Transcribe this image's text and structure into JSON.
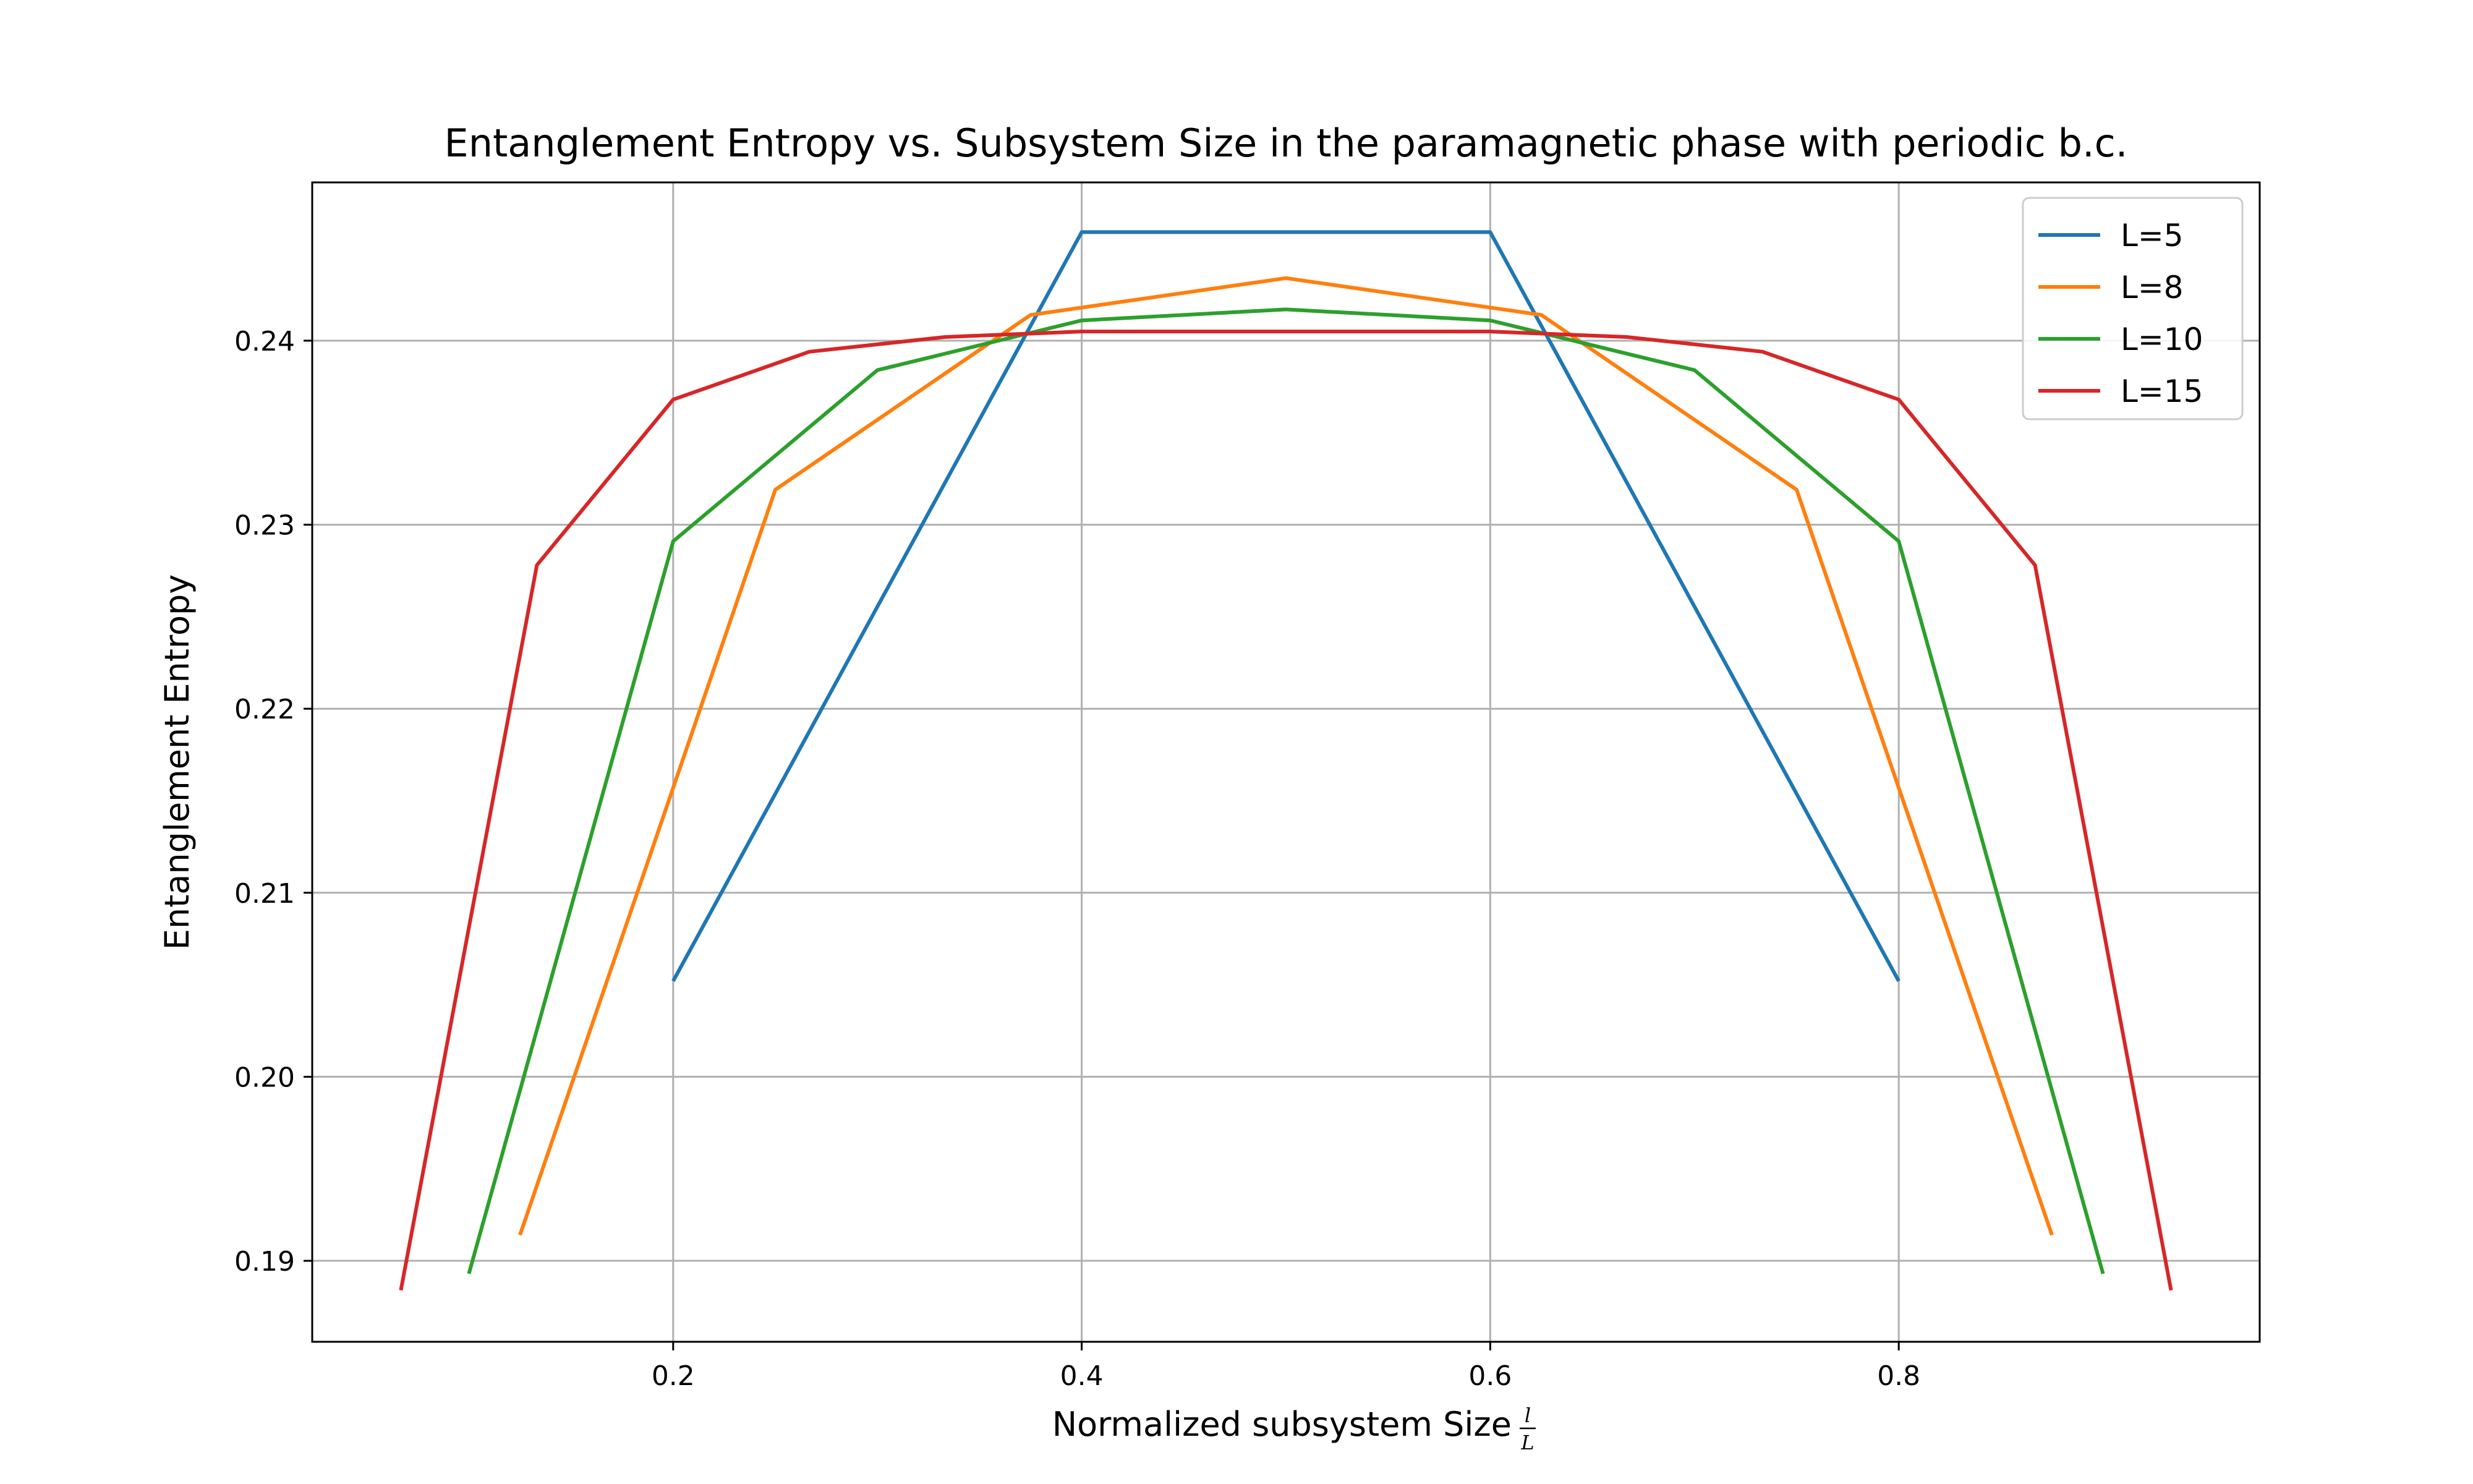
{
  "chart_data": {
    "type": "line",
    "title": "Entanglement Entropy vs. Subsystem Size in the paramagnetic phase with periodic b.c.",
    "xlabel": "Normalized subsystem Size",
    "xlabel_fraction": {
      "numerator": "l",
      "denominator": "L"
    },
    "ylabel": "Entanglement Entropy",
    "xlim": [
      0.0233,
      0.9767
    ],
    "ylim": [
      0.1856,
      0.2486
    ],
    "xticks": [
      0.2,
      0.4,
      0.6,
      0.8
    ],
    "yticks": [
      0.19,
      0.2,
      0.21,
      0.22,
      0.23,
      0.24
    ],
    "xtick_labels": [
      "0.2",
      "0.4",
      "0.6",
      "0.8"
    ],
    "ytick_labels": [
      "0.19",
      "0.20",
      "0.21",
      "0.22",
      "0.23",
      "0.24"
    ],
    "grid": true,
    "legend_position": "top-right",
    "series": [
      {
        "name": "L=5",
        "color": "#1f77b4",
        "x": [
          0.2,
          0.4,
          0.6,
          0.8
        ],
        "y": [
          0.2052,
          0.2459,
          0.2459,
          0.2052
        ]
      },
      {
        "name": "L=8",
        "color": "#ff7f0e",
        "x": [
          0.125,
          0.25,
          0.375,
          0.5,
          0.625,
          0.75,
          0.875
        ],
        "y": [
          0.1914,
          0.2319,
          0.2414,
          0.2434,
          0.2414,
          0.2319,
          0.1914
        ]
      },
      {
        "name": "L=10",
        "color": "#2ca02c",
        "x": [
          0.1,
          0.2,
          0.3,
          0.4,
          0.5,
          0.6,
          0.7,
          0.8,
          0.9
        ],
        "y": [
          0.1893,
          0.2291,
          0.2384,
          0.2411,
          0.2417,
          0.2411,
          0.2384,
          0.2291,
          0.1893
        ]
      },
      {
        "name": "L=15",
        "color": "#d62728",
        "x": [
          0.0667,
          0.1333,
          0.2,
          0.2667,
          0.3333,
          0.4,
          0.4667,
          0.5333,
          0.6,
          0.6667,
          0.7333,
          0.8,
          0.8667,
          0.9333
        ],
        "y": [
          0.1884,
          0.2278,
          0.2368,
          0.2394,
          0.2402,
          0.2405,
          0.2405,
          0.2405,
          0.2405,
          0.2402,
          0.2394,
          0.2368,
          0.2278,
          0.1884
        ]
      }
    ]
  }
}
